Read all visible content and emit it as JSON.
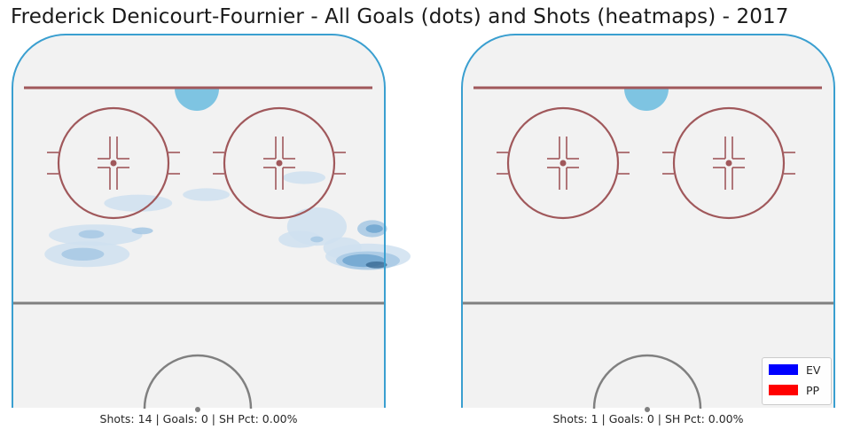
{
  "title": "Frederick Denicourt-Fournier - All Goals (dots) and Shots (heatmaps) - 2017",
  "chart_data": [
    {
      "type": "heatmap",
      "panel": "left",
      "caption": "Shots: 14 | Goals: 0 | SH Pct: 0.00%",
      "stats": {
        "shots": 14,
        "goals": 0,
        "sh_pct": "0.00%"
      },
      "goals": [],
      "shot_density_regions": [
        {
          "cx": 25,
          "cy": 0.5,
          "rx": 5,
          "ry": 1.5,
          "level": 1
        },
        {
          "cx": 2,
          "cy": 4.5,
          "rx": 5.5,
          "ry": 1.5,
          "level": 1
        },
        {
          "cx": 28,
          "cy": 12,
          "rx": 7,
          "ry": 4.5,
          "level": 1
        },
        {
          "cx": 40,
          "cy": 19,
          "rx": 10,
          "ry": 3,
          "level": 1
        },
        {
          "cx": 24,
          "cy": 15,
          "rx": 5,
          "ry": 2,
          "level": 1
        },
        {
          "cx": 34,
          "cy": 17,
          "rx": 4.5,
          "ry": 2.5,
          "level": 1
        },
        {
          "cx": -14,
          "cy": 6.5,
          "rx": 8,
          "ry": 2,
          "level": 1
        },
        {
          "cx": -24,
          "cy": 14,
          "rx": 11,
          "ry": 2.5,
          "level": 1
        },
        {
          "cx": -26,
          "cy": 18.5,
          "rx": 10,
          "ry": 3,
          "level": 1
        },
        {
          "cx": 28,
          "cy": 15,
          "rx": 1.5,
          "ry": 0.7,
          "level": 2
        },
        {
          "cx": -25,
          "cy": 13.8,
          "rx": 3,
          "ry": 1,
          "level": 2
        },
        {
          "cx": -13,
          "cy": 13,
          "rx": 2.5,
          "ry": 0.8,
          "level": 2
        },
        {
          "cx": -27,
          "cy": 18.5,
          "rx": 5,
          "ry": 1.5,
          "level": 2
        },
        {
          "cx": 41,
          "cy": 12.5,
          "rx": 3.5,
          "ry": 2,
          "level": 2
        },
        {
          "cx": 40,
          "cy": 20,
          "rx": 7.5,
          "ry": 2.2,
          "level": 2
        },
        {
          "cx": 39,
          "cy": 20,
          "rx": 5,
          "ry": 1.5,
          "level": 3
        },
        {
          "cx": 41.5,
          "cy": 12.5,
          "rx": 2,
          "ry": 1,
          "level": 3
        },
        {
          "cx": 42,
          "cy": 21,
          "rx": 2.5,
          "ry": 0.8,
          "level": 4
        }
      ]
    },
    {
      "type": "heatmap",
      "panel": "right",
      "caption": "Shots: 1 | Goals: 0 | SH Pct: 0.00%",
      "stats": {
        "shots": 1,
        "goals": 0,
        "sh_pct": "0.00%"
      },
      "goals": [],
      "shot_density_regions": []
    }
  ],
  "legend": {
    "placement": "lower-right",
    "items": [
      {
        "label": "EV",
        "color": "#0000ff"
      },
      {
        "label": "PP",
        "color": "#ff0000"
      }
    ]
  },
  "colors": {
    "ice": "#f2f2f2",
    "boards": "#3a9fd0",
    "goal_line": "#a0585b",
    "faceoff": "#a0585b",
    "crease": "#7ec4e2",
    "blue_line": "#808080",
    "center_circle": "#808080",
    "heat_levels": [
      "#cfe0f0",
      "#a6c8e4",
      "#6fa5cf",
      "#3e6e98"
    ]
  }
}
